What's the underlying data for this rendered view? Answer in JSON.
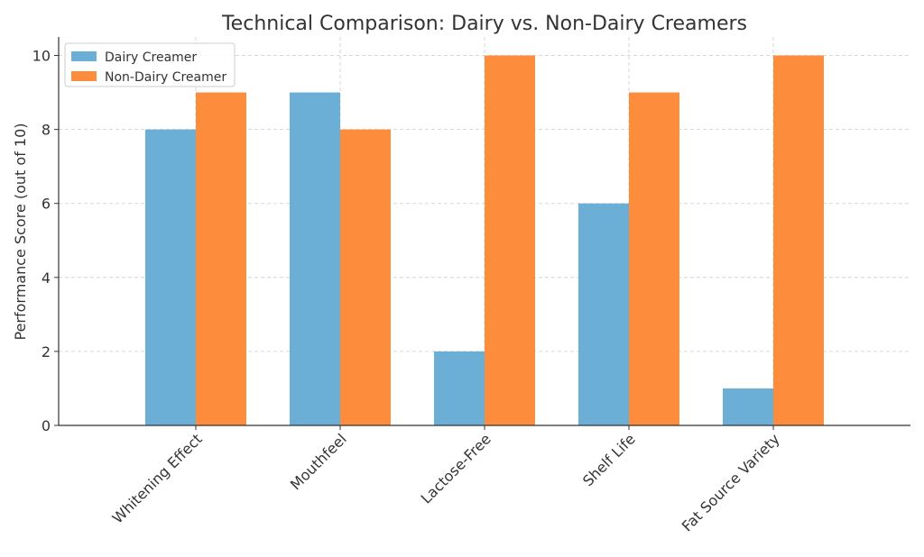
{
  "chart_data": {
    "type": "bar",
    "title": "Technical Comparison: Dairy vs. Non-Dairy Creamers",
    "xlabel": "",
    "ylabel": "Performance Score (out of 10)",
    "categories": [
      "Whitening Effect",
      "Mouthfeel",
      "Lactose-Free",
      "Shelf Life",
      "Fat Source Variety"
    ],
    "series": [
      {
        "name": "Dairy Creamer",
        "values": [
          8,
          9,
          2,
          6,
          1
        ],
        "color": "#6baed6"
      },
      {
        "name": "Non-Dairy Creamer",
        "values": [
          9,
          8,
          10,
          9,
          10
        ],
        "color": "#fd8d3c"
      }
    ],
    "ylim": [
      0,
      10.5
    ],
    "yticks": [
      0,
      2,
      4,
      6,
      8,
      10
    ],
    "grid": true,
    "legend_position": "top-left"
  }
}
